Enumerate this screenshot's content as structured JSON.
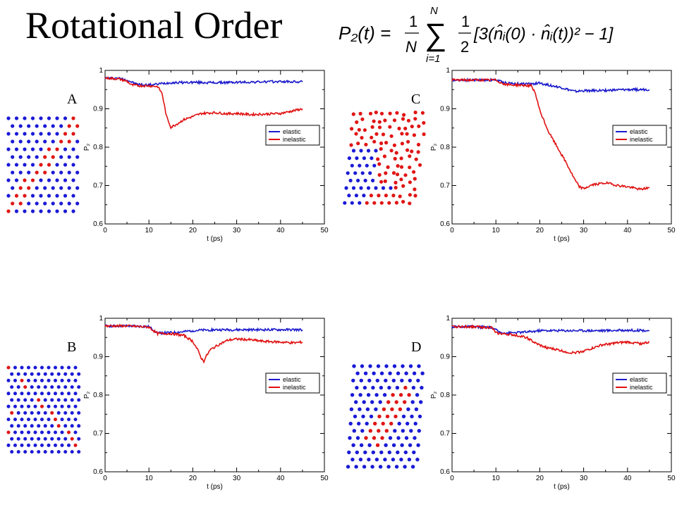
{
  "slide": {
    "title": "Rotational Order",
    "formula": {
      "lhs": "P₂(t) =",
      "frac1_num": "1",
      "frac1_den": "N",
      "sum_upper": "N",
      "sum_lower": "i=1",
      "frac2_num": "1",
      "frac2_den": "2",
      "body": "[3(n̂ᵢ(0) · n̂ᵢ(t))² − 1]"
    }
  },
  "colors": {
    "elastic": "#1a1acc",
    "inelastic": "#e01010",
    "blue_atoms": "#1a1ad6",
    "red_atoms": "#e01515"
  },
  "chart_data": [
    {
      "panel": "A",
      "type": "line",
      "xlabel": "t (ps)",
      "ylabel": "P₂",
      "xlim": [
        0,
        50
      ],
      "ylim": [
        0.6,
        1.0
      ],
      "xticks": [
        "0",
        "10",
        "20",
        "30",
        "40",
        "50"
      ],
      "yticks": [
        "0.6",
        "0.7",
        "0.8",
        "0.9",
        "1"
      ],
      "legend_position": "right",
      "series": [
        {
          "name": "elastic",
          "color": "#1a1acc",
          "x": [
            0,
            3,
            5,
            7,
            9,
            11,
            13,
            15,
            20,
            25,
            30,
            35,
            40,
            45
          ],
          "y": [
            0.98,
            0.98,
            0.975,
            0.965,
            0.962,
            0.963,
            0.966,
            0.968,
            0.969,
            0.968,
            0.969,
            0.97,
            0.971,
            0.97
          ]
        },
        {
          "name": "inelastic",
          "color": "#e01010",
          "x": [
            0,
            3,
            5,
            6,
            8,
            10,
            12,
            13,
            14,
            15,
            16,
            17,
            18,
            20,
            22,
            25,
            28,
            30,
            33,
            36,
            40,
            43,
            45
          ],
          "y": [
            0.98,
            0.978,
            0.972,
            0.962,
            0.96,
            0.96,
            0.958,
            0.94,
            0.88,
            0.852,
            0.858,
            0.865,
            0.872,
            0.88,
            0.888,
            0.89,
            0.887,
            0.888,
            0.885,
            0.886,
            0.888,
            0.895,
            0.9
          ]
        }
      ]
    },
    {
      "panel": "B",
      "type": "line",
      "xlabel": "t (ps)",
      "ylabel": "P₂",
      "xlim": [
        0,
        50
      ],
      "ylim": [
        0.6,
        1.0
      ],
      "xticks": [
        "0",
        "10",
        "20",
        "30",
        "40",
        "50"
      ],
      "yticks": [
        "0.6",
        "0.7",
        "0.8",
        "0.9",
        "1"
      ],
      "legend_position": "right",
      "series": [
        {
          "name": "elastic",
          "color": "#1a1acc",
          "x": [
            0,
            5,
            10,
            12,
            14,
            16,
            18,
            20,
            25,
            30,
            35,
            40,
            45
          ],
          "y": [
            0.98,
            0.98,
            0.978,
            0.962,
            0.962,
            0.963,
            0.965,
            0.968,
            0.97,
            0.97,
            0.97,
            0.97,
            0.97
          ]
        },
        {
          "name": "inelastic",
          "color": "#e01010",
          "x": [
            0,
            5,
            10,
            11,
            12,
            15,
            18,
            20,
            21,
            22,
            22.5,
            23,
            24,
            26,
            28,
            30,
            33,
            36,
            40,
            43,
            45
          ],
          "y": [
            0.98,
            0.98,
            0.977,
            0.968,
            0.96,
            0.96,
            0.955,
            0.94,
            0.92,
            0.895,
            0.888,
            0.9,
            0.918,
            0.932,
            0.943,
            0.946,
            0.944,
            0.94,
            0.938,
            0.936,
            0.938
          ]
        }
      ]
    },
    {
      "panel": "C",
      "type": "line",
      "xlabel": "t (ps)",
      "ylabel": "P₂",
      "xlim": [
        0,
        50
      ],
      "ylim": [
        0.6,
        1.0
      ],
      "xticks": [
        "0",
        "10",
        "20",
        "30",
        "40",
        "50"
      ],
      "yticks": [
        "0.6",
        "0.7",
        "0.8",
        "0.9",
        "1"
      ],
      "legend_position": "right",
      "series": [
        {
          "name": "elastic",
          "color": "#1a1acc",
          "x": [
            0,
            5,
            10,
            12,
            15,
            18,
            20,
            22,
            25,
            28,
            30,
            35,
            40,
            45
          ],
          "y": [
            0.975,
            0.975,
            0.975,
            0.968,
            0.965,
            0.965,
            0.967,
            0.962,
            0.955,
            0.945,
            0.947,
            0.948,
            0.95,
            0.95
          ]
        },
        {
          "name": "inelastic",
          "color": "#e01010",
          "x": [
            0,
            5,
            10,
            12,
            15,
            18,
            19,
            20,
            22,
            24,
            26,
            28,
            29,
            30,
            32,
            35,
            38,
            40,
            43,
            45
          ],
          "y": [
            0.975,
            0.975,
            0.975,
            0.963,
            0.962,
            0.96,
            0.94,
            0.895,
            0.84,
            0.8,
            0.76,
            0.715,
            0.697,
            0.692,
            0.702,
            0.707,
            0.7,
            0.697,
            0.69,
            0.695
          ]
        }
      ]
    },
    {
      "panel": "D",
      "type": "line",
      "xlabel": "t (ps)",
      "ylabel": "P₂",
      "xlim": [
        0,
        50
      ],
      "ylim": [
        0.6,
        1.0
      ],
      "xticks": [
        "0",
        "10",
        "20",
        "30",
        "40",
        "50"
      ],
      "yticks": [
        "0.6",
        "0.7",
        "0.8",
        "0.9",
        "1"
      ],
      "legend_position": "right",
      "series": [
        {
          "name": "elastic",
          "color": "#1a1acc",
          "x": [
            0,
            5,
            9,
            11,
            13,
            15,
            18,
            20,
            25,
            30,
            35,
            40,
            45
          ],
          "y": [
            0.978,
            0.978,
            0.976,
            0.963,
            0.962,
            0.963,
            0.965,
            0.968,
            0.968,
            0.968,
            0.968,
            0.969,
            0.968
          ]
        },
        {
          "name": "inelastic",
          "color": "#e01010",
          "x": [
            0,
            5,
            9,
            10,
            11,
            13,
            15,
            17,
            19,
            21,
            24,
            27,
            29,
            31,
            34,
            37,
            40,
            43,
            45
          ],
          "y": [
            0.978,
            0.978,
            0.976,
            0.962,
            0.96,
            0.958,
            0.955,
            0.95,
            0.935,
            0.925,
            0.918,
            0.91,
            0.912,
            0.918,
            0.93,
            0.935,
            0.938,
            0.934,
            0.938
          ]
        }
      ]
    }
  ],
  "panels": [
    {
      "letter": "A"
    },
    {
      "letter": "B"
    },
    {
      "letter": "C"
    },
    {
      "letter": "D"
    }
  ],
  "lattices": [
    "diagonal-band",
    "diagonal-thin",
    "disordered-top",
    "central-patch"
  ]
}
